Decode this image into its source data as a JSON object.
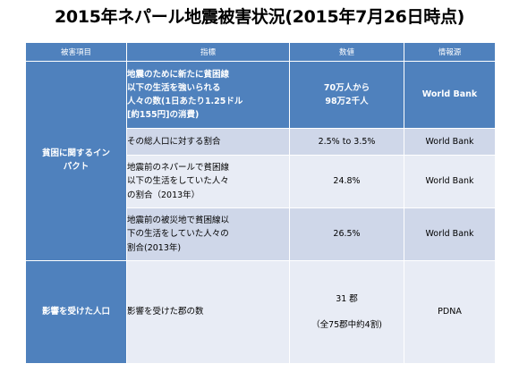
{
  "title": "2015年ネパール地震被害状況(2015年7月26日時点)",
  "table": {
    "headers": [
      "被害項目",
      "指標",
      "数値",
      "情報源"
    ],
    "categories": {
      "poverty": "貧困に関するイン\nパクト",
      "affected": "影響を受けた人口"
    },
    "rows": [
      {
        "indicator": "地震のために新たに貧困線\n以下の生活を強いられる\n人々の数(1日あたり1.25ドル\n[約155円]の消費)",
        "value": "70万人から\n98万2千人",
        "source": "World Bank"
      },
      {
        "indicator": "その総人口に対する割合",
        "value": "2.5% to 3.5%",
        "source": "World Bank"
      },
      {
        "indicator": "地震前のネパールで貧困線\n以下の生活をしていた人々\nの割合（2013年）",
        "value": "24.8%",
        "source": "World Bank"
      },
      {
        "indicator": "地震前の被災地で貧困線以\n下の生活をしていた人々の\n割合(2013年)",
        "value": "26.5%",
        "source": "World Bank"
      },
      {
        "indicator": "影響を受けた郡の数",
        "value_line1": "31 郡",
        "value_line2": "（全75郡中約4割)",
        "source": "PDNA"
      }
    ]
  },
  "colors": {
    "header_fill": "#4f81bd",
    "row_dark": "#cfd7e9",
    "row_light": "#e8ecf5"
  }
}
